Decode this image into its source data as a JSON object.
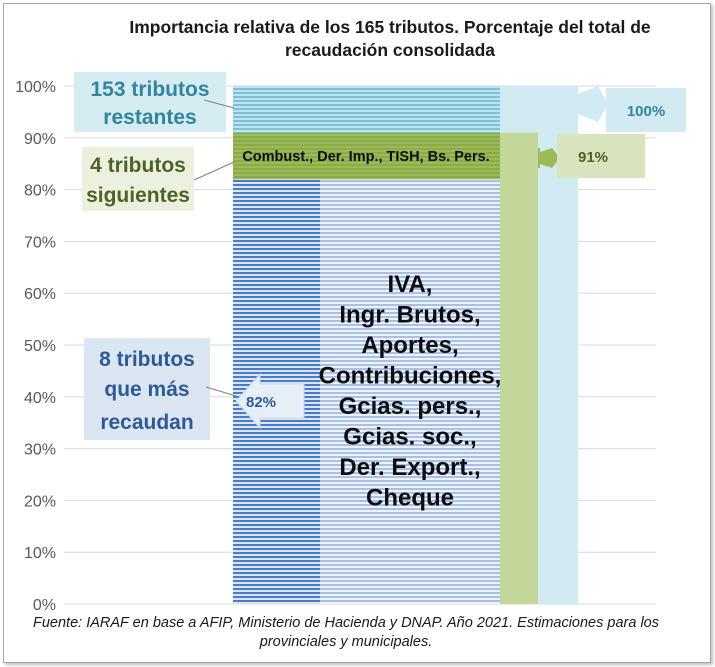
{
  "chart_data": {
    "type": "bar",
    "title": "Importancia relativa de los 165 tributos. Porcentaje del total de recaudación consolidada",
    "title_lines": [
      "Importancia relativa de los 165 tributos. Porcentaje del total de",
      "recaudación consolidada"
    ],
    "ylim": [
      0,
      100
    ],
    "y_ticks": [
      "0%",
      "10%",
      "20%",
      "30%",
      "40%",
      "50%",
      "60%",
      "70%",
      "80%",
      "90%",
      "100%"
    ],
    "y_tick_values": [
      0,
      10,
      20,
      30,
      40,
      50,
      60,
      70,
      80,
      90,
      100
    ],
    "grid": true,
    "segments": [
      {
        "label_lines": [
          "8 tributos",
          "que más",
          "recaudan"
        ],
        "start": 0,
        "end": 82,
        "value_label": "82%",
        "color": "#3d6fb5",
        "color_light": "#b9cde9",
        "text_color": "#2e5a94",
        "inner_lines": [
          "IVA,",
          "Ingr. Brutos,",
          "Aportes,",
          "Contribuciones,",
          "Gcias. pers.,",
          "Gcias. soc.,",
          "Der. Export.,",
          "Cheque"
        ]
      },
      {
        "label_lines": [
          "4 tributos",
          "siguientes"
        ],
        "start": 82,
        "end": 91,
        "value_label": "91%",
        "color": "#9bbb59",
        "color_light": "#c4d79b",
        "text_color": "#4f6228",
        "inner_lines": [
          "Combust., Der. Imp., TISH, Bs. Pers."
        ]
      },
      {
        "label_lines": [
          "153 tributos",
          "restantes"
        ],
        "start": 91,
        "end": 100,
        "value_label": "100%",
        "color": "#93cddd",
        "color_light": "#d5ecf3",
        "text_color": "#31859c",
        "inner_lines": []
      }
    ]
  },
  "source_lines": [
    "Fuente: IARAF en base a AFIP, Ministerio de Hacienda y DNAP. Año 2021. Estimaciones para los",
    "provinciales y municipales."
  ]
}
